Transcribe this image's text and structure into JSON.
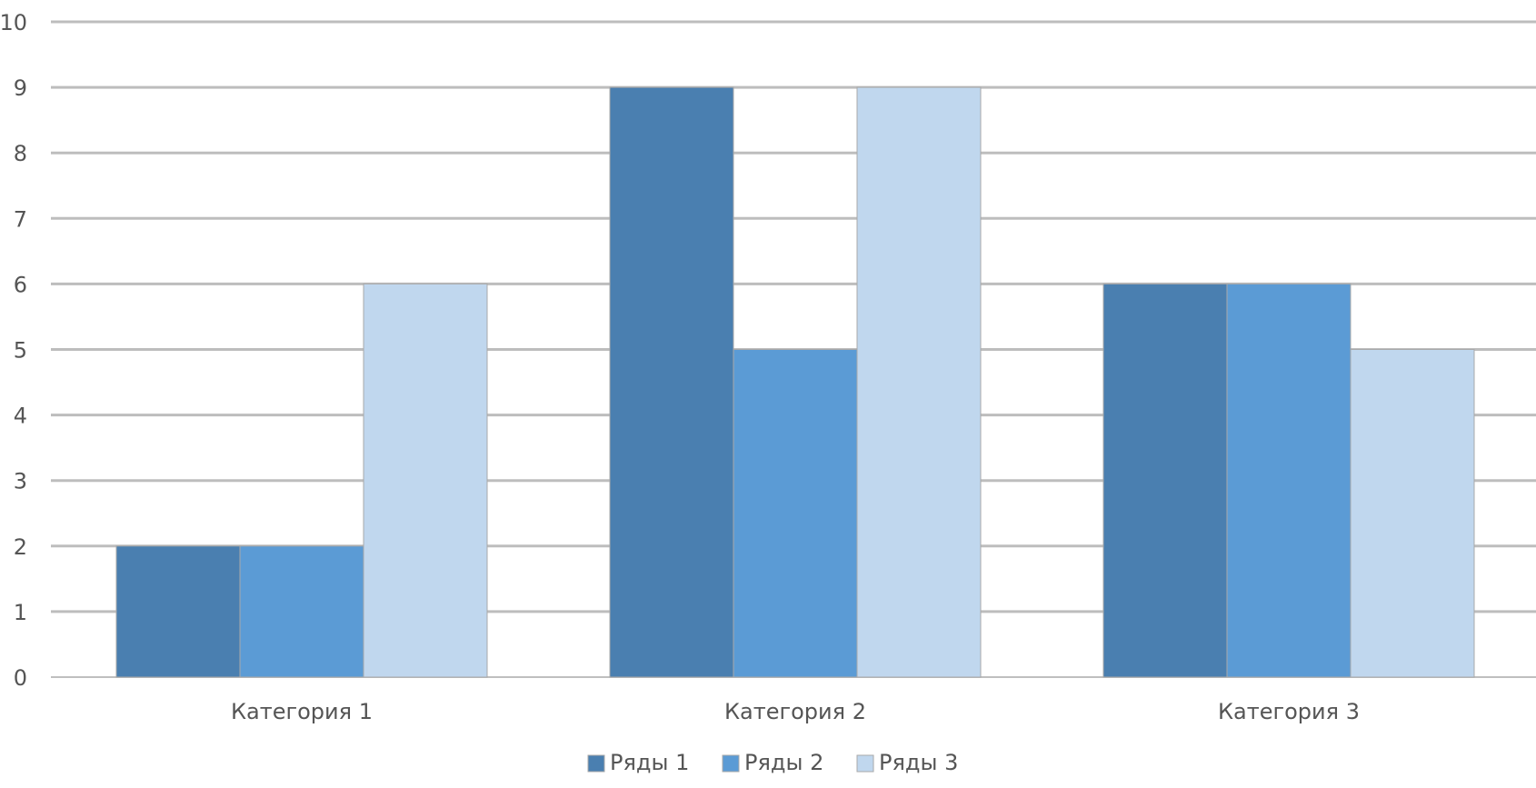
{
  "chart_data": {
    "type": "bar",
    "title": "",
    "xlabel": "",
    "ylabel": "",
    "categories": [
      "Категория 1",
      "Категория 2",
      "Категория 3"
    ],
    "series": [
      {
        "name": "Ряды 1",
        "values": [
          2,
          9,
          6
        ],
        "color": "#4a7fb0"
      },
      {
        "name": "Ряды 2",
        "values": [
          2,
          5,
          6
        ],
        "color": "#5b9bd5"
      },
      {
        "name": "Ряды 3",
        "values": [
          6,
          9,
          5
        ],
        "color": "#c0d7ee"
      }
    ],
    "ylim": [
      0,
      10
    ],
    "yticks": [
      0,
      1,
      2,
      3,
      4,
      5,
      6,
      7,
      8,
      9,
      10
    ],
    "grid": true,
    "legend": "bottom",
    "gridline_color": "#bdbdbd",
    "axis_text_color": "#555555"
  }
}
